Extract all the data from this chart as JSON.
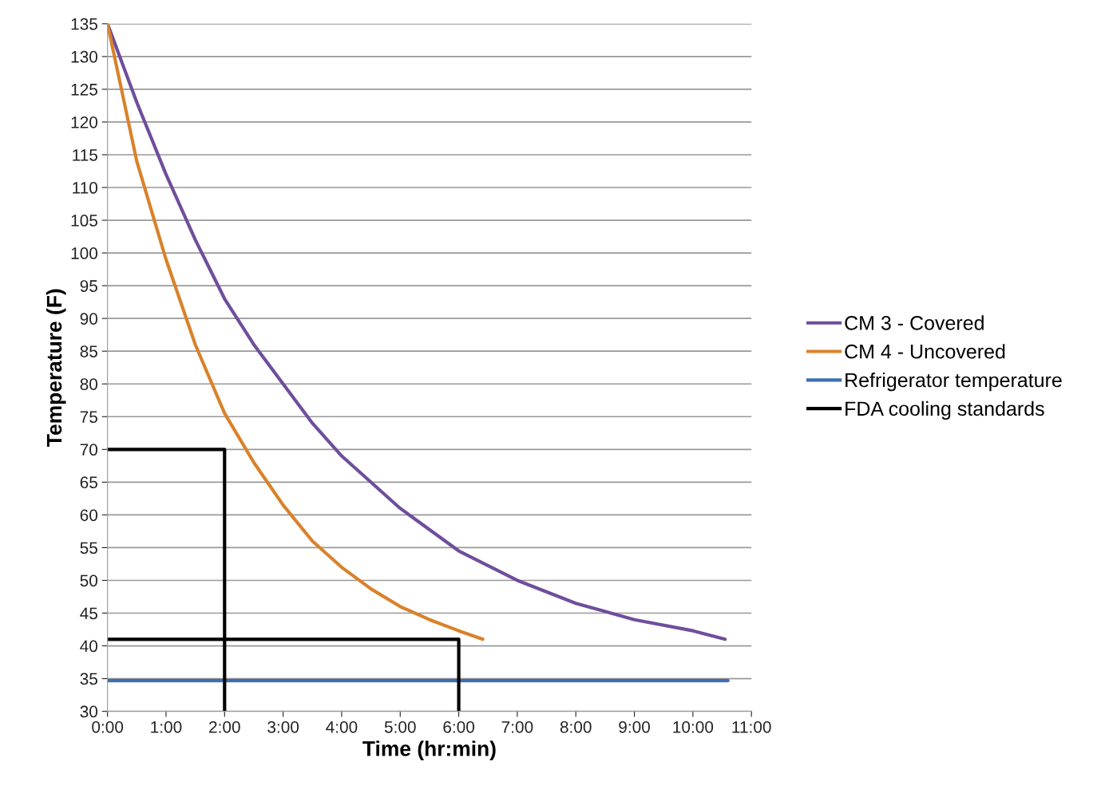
{
  "chart_data": {
    "type": "line",
    "xlabel": "Time (hr:min)",
    "ylabel": "Temperature (F)",
    "xlim": [
      0,
      11
    ],
    "ylim": [
      30,
      135
    ],
    "xticks": [
      {
        "value": 0,
        "label": "0:00"
      },
      {
        "value": 1,
        "label": "1:00"
      },
      {
        "value": 2,
        "label": "2:00"
      },
      {
        "value": 3,
        "label": "3:00"
      },
      {
        "value": 4,
        "label": "4:00"
      },
      {
        "value": 5,
        "label": "5:00"
      },
      {
        "value": 6,
        "label": "6:00"
      },
      {
        "value": 7,
        "label": "7:00"
      },
      {
        "value": 8,
        "label": "8:00"
      },
      {
        "value": 9,
        "label": "9:00"
      },
      {
        "value": 10,
        "label": "10:00"
      },
      {
        "value": 11,
        "label": "11:00"
      }
    ],
    "yticks": [
      30,
      35,
      40,
      45,
      50,
      55,
      60,
      65,
      70,
      75,
      80,
      85,
      90,
      95,
      100,
      105,
      110,
      115,
      120,
      125,
      130,
      135
    ],
    "grid": "y",
    "legend": "right",
    "marker": "none",
    "line_style": "solid",
    "series": [
      {
        "name": "CM 3 - Covered",
        "color": "#6f4e9c",
        "x": [
          0,
          0.5,
          1,
          1.5,
          2,
          2.5,
          3,
          3.5,
          4,
          5,
          6,
          7,
          8,
          9,
          10,
          10.55
        ],
        "values": [
          135,
          123,
          112,
          102,
          93,
          86,
          80,
          74,
          69,
          61,
          54.5,
          50,
          46.5,
          44,
          42.3,
          41
        ]
      },
      {
        "name": "CM 4 - Uncovered",
        "color": "#d9822b",
        "x": [
          0,
          0.5,
          1,
          1.5,
          2,
          2.5,
          3,
          3.5,
          4,
          4.5,
          5,
          5.5,
          6,
          6.41
        ],
        "values": [
          135,
          114,
          99,
          86,
          75.5,
          68,
          61.5,
          56,
          52,
          48.7,
          46,
          44,
          42.3,
          41
        ]
      },
      {
        "name": "Refrigerator temperature",
        "color": "#3d6fb0",
        "x": [
          0,
          10.6
        ],
        "values": [
          34.7,
          34.7
        ]
      },
      {
        "name": "FDA cooling standards",
        "color": "#000000",
        "x": [
          0,
          2,
          2,
          null,
          0,
          6,
          6
        ],
        "values": [
          70,
          70,
          30,
          null,
          41,
          41,
          30
        ]
      }
    ]
  }
}
